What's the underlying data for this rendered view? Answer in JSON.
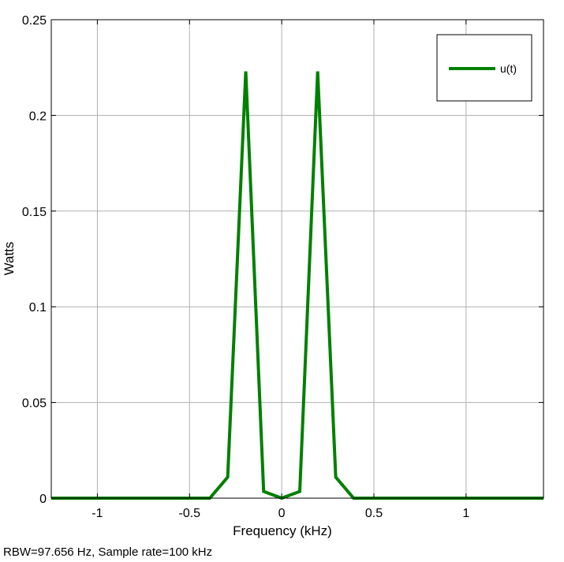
{
  "chart_data": {
    "type": "line",
    "xlabel": "Frequency (kHz)",
    "ylabel": "Watts",
    "xlim": [
      -1.25,
      1.42
    ],
    "ylim": [
      0,
      0.25
    ],
    "x_ticks": [
      -1,
      -0.5,
      0,
      0.5,
      1
    ],
    "x_tick_labels": [
      "-1",
      "-0.5",
      "0",
      "0.5",
      "1"
    ],
    "y_ticks": [
      0,
      0.05,
      0.1,
      0.15,
      0.2,
      0.25
    ],
    "y_tick_labels": [
      "0",
      "0.05",
      "0.1",
      "0.15",
      "0.2",
      "0.25"
    ],
    "grid": true,
    "legend_position": "top-right",
    "series": [
      {
        "name": "u(t)",
        "color": "#008000",
        "x": [
          -1.25,
          -0.39,
          -0.293,
          -0.195,
          -0.098,
          0,
          0.098,
          0.195,
          0.293,
          0.39,
          1.42
        ],
        "y": [
          0,
          0,
          0.011,
          0.223,
          0.0035,
          0,
          0.0035,
          0.223,
          0.011,
          0,
          0
        ]
      }
    ]
  },
  "footer": {
    "text": "RBW=97.656 Hz, Sample rate=100 kHz"
  }
}
